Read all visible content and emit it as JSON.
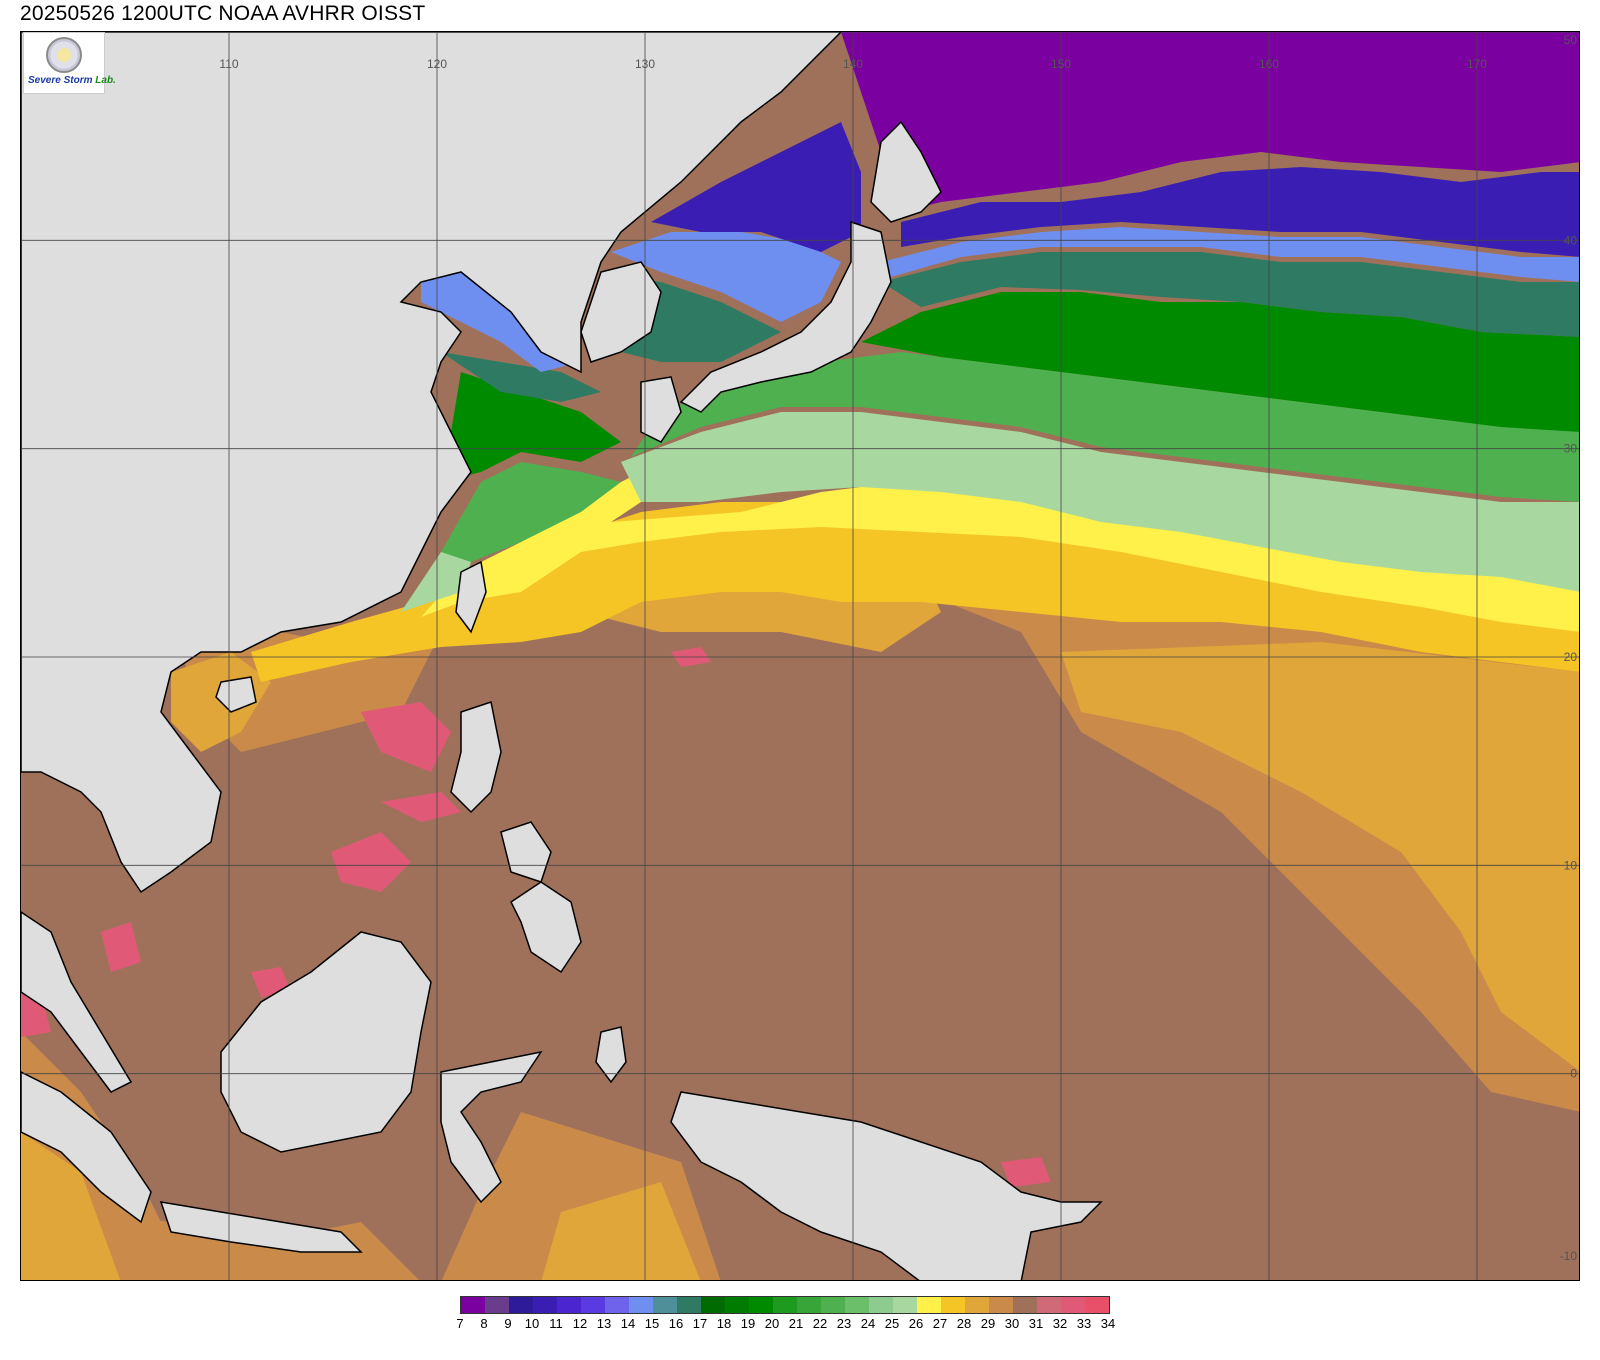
{
  "title": "20250526 1200UTC NOAA AVHRR OISST",
  "logo": {
    "text_severe": "Severe",
    "text_storm": "Storm",
    "text_lab": "Lab."
  },
  "map": {
    "lon_range": [
      100,
      175
    ],
    "lat_range": [
      -10,
      50
    ],
    "lon_ticks": [
      110,
      120,
      130,
      140,
      150,
      160,
      170
    ],
    "lat_ticks": [
      50,
      40,
      30,
      20,
      10,
      0,
      -10
    ],
    "grid": true,
    "land_color": "#dedede",
    "coastline_color": "#000000"
  },
  "colorbar": {
    "labels": [
      "7",
      "8",
      "9",
      "10",
      "11",
      "12",
      "13",
      "14",
      "15",
      "16",
      "17",
      "18",
      "19",
      "20",
      "21",
      "22",
      "23",
      "24",
      "25",
      "26",
      "27",
      "28",
      "29",
      "30",
      "31",
      "32",
      "33",
      "34"
    ],
    "colors": [
      "#7a00a0",
      "#6a3c8c",
      "#2e1b9a",
      "#3a1eb4",
      "#4b26d0",
      "#5a3be2",
      "#6f63ec",
      "#6f8ff0",
      "#4f8f9a",
      "#2e7a62",
      "#006b00",
      "#007d00",
      "#008a00",
      "#1e9a1e",
      "#37a537",
      "#4fb04f",
      "#6bbf6b",
      "#8ecb8e",
      "#a8d8a0",
      "#fff04a",
      "#f5c425",
      "#e0a63a",
      "#c98a4a",
      "#a0715a",
      "#d06a78",
      "#e05a78",
      "#e8506a",
      "#d92b45"
    ]
  },
  "sst_bands": [
    {
      "label": "7",
      "color": "#7a00a0"
    },
    {
      "label": "10",
      "color": "#3a1eb4"
    },
    {
      "label": "14",
      "color": "#6f8ff0"
    },
    {
      "label": "16",
      "color": "#2e7a62"
    },
    {
      "label": "19",
      "color": "#008a00"
    },
    {
      "label": "22",
      "color": "#4fb04f"
    },
    {
      "label": "25",
      "color": "#a8d8a0"
    },
    {
      "label": "26",
      "color": "#fff04a"
    },
    {
      "label": "27",
      "color": "#f5c425"
    },
    {
      "label": "28",
      "color": "#e0a63a"
    },
    {
      "label": "29",
      "color": "#c98a4a"
    },
    {
      "label": "30",
      "color": "#a0715a"
    },
    {
      "label": "32",
      "color": "#e05a78"
    }
  ]
}
